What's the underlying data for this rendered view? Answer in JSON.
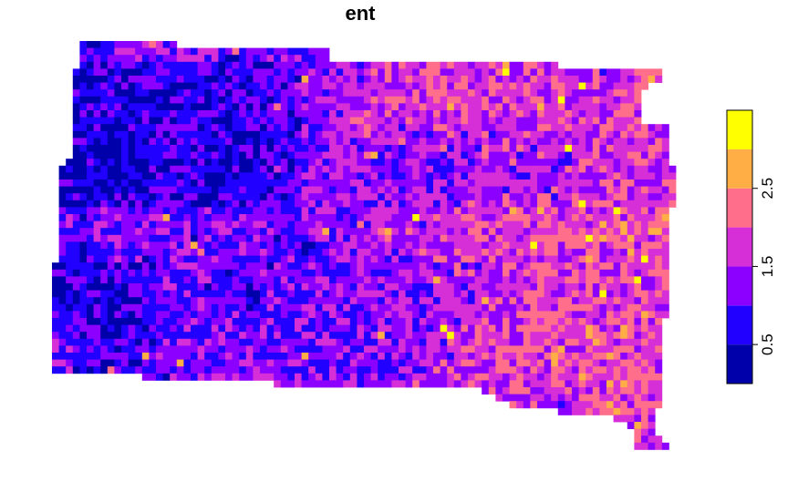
{
  "title": "ent",
  "legend": {
    "ticks": [
      {
        "value": 0.5,
        "label": "0.5"
      },
      {
        "value": 1.5,
        "label": "1.5"
      },
      {
        "value": 2.5,
        "label": "2.5"
      }
    ],
    "range": [
      0,
      3.5
    ],
    "bins": [
      {
        "from": 0.0,
        "to": 0.5,
        "color": "#0000AA"
      },
      {
        "from": 0.5,
        "to": 1.0,
        "color": "#2200FF"
      },
      {
        "from": 1.0,
        "to": 1.5,
        "color": "#8C00FF"
      },
      {
        "from": 1.5,
        "to": 2.0,
        "color": "#D62FD7"
      },
      {
        "from": 2.0,
        "to": 2.5,
        "color": "#FF6E8A"
      },
      {
        "from": 2.5,
        "to": 3.0,
        "color": "#FFAE45"
      },
      {
        "from": 3.0,
        "to": 3.5,
        "color": "#FFFF00"
      }
    ]
  }
}
